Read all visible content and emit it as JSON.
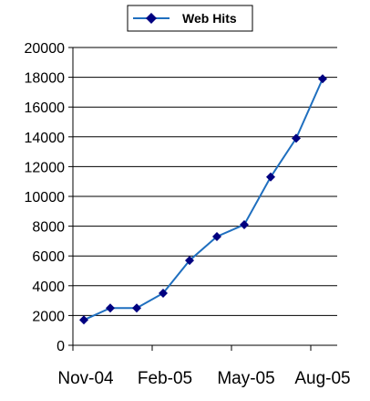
{
  "chart_data": {
    "type": "line",
    "title": "",
    "xlabel": "",
    "ylabel": "",
    "ylim": [
      0,
      20000
    ],
    "yticks": [
      0,
      2000,
      4000,
      6000,
      8000,
      10000,
      12000,
      14000,
      16000,
      18000,
      20000
    ],
    "ytick_labels": [
      "0",
      "2000",
      "4000",
      "6000",
      "8000",
      "10000",
      "12000",
      "14000",
      "16000",
      "18000",
      "20000"
    ],
    "x": [
      "2004-11-01",
      "2004-12-01",
      "2005-01-01",
      "2005-02-01",
      "2005-03-01",
      "2005-04-01",
      "2005-05-01",
      "2005-06-01",
      "2005-07-01",
      "2005-08-01"
    ],
    "xtick_labels": [
      "Nov-04",
      "Feb-05",
      "May-05",
      "Aug-05"
    ],
    "grid": true,
    "legend": "top",
    "series": [
      {
        "name": "Web Hits",
        "color": "#1f6fbf",
        "marker_color": "#000080",
        "values": [
          1700,
          2500,
          2500,
          3500,
          5700,
          7300,
          8100,
          11300,
          13900,
          17900
        ]
      }
    ]
  }
}
